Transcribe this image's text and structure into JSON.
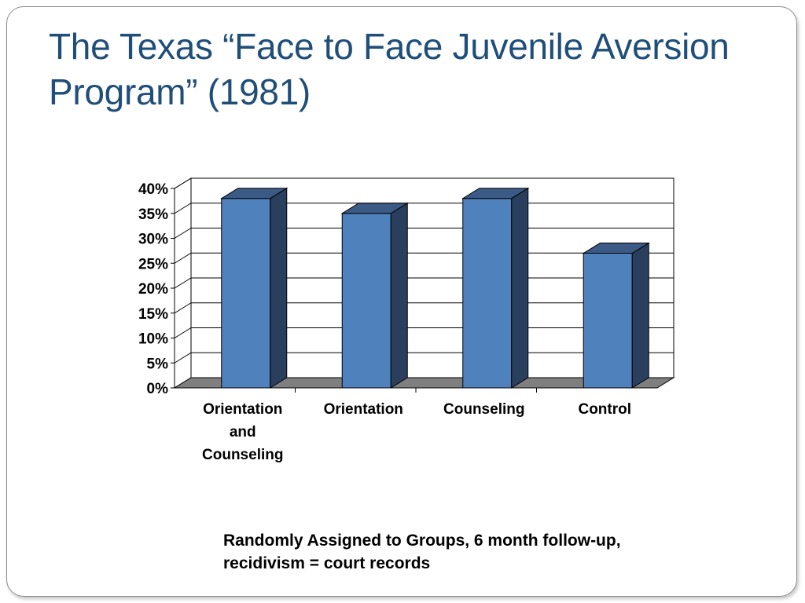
{
  "slide": {
    "title": "The Texas “Face to Face Juvenile Aversion Program” (1981)",
    "footnote": "Randomly Assigned to Groups, 6 month follow-up, recidivism = court records"
  },
  "chart_data": {
    "type": "bar",
    "categories": [
      [
        "Orientation",
        "and",
        "Counseling"
      ],
      [
        "Orientation"
      ],
      [
        "Counseling"
      ],
      [
        "Control"
      ]
    ],
    "values": [
      0.38,
      0.35,
      0.38,
      0.27
    ],
    "ylim": [
      0,
      0.4
    ],
    "yticks": [
      "0%",
      "5%",
      "10%",
      "15%",
      "20%",
      "25%",
      "30%",
      "35%",
      "40%"
    ],
    "grid": true,
    "style": "3d-bar",
    "colors": {
      "bar_front": "#4f81bd",
      "bar_side": "#2a3f5e",
      "bar_top": "#3b5a85",
      "floor": "#7f7f7f"
    }
  }
}
